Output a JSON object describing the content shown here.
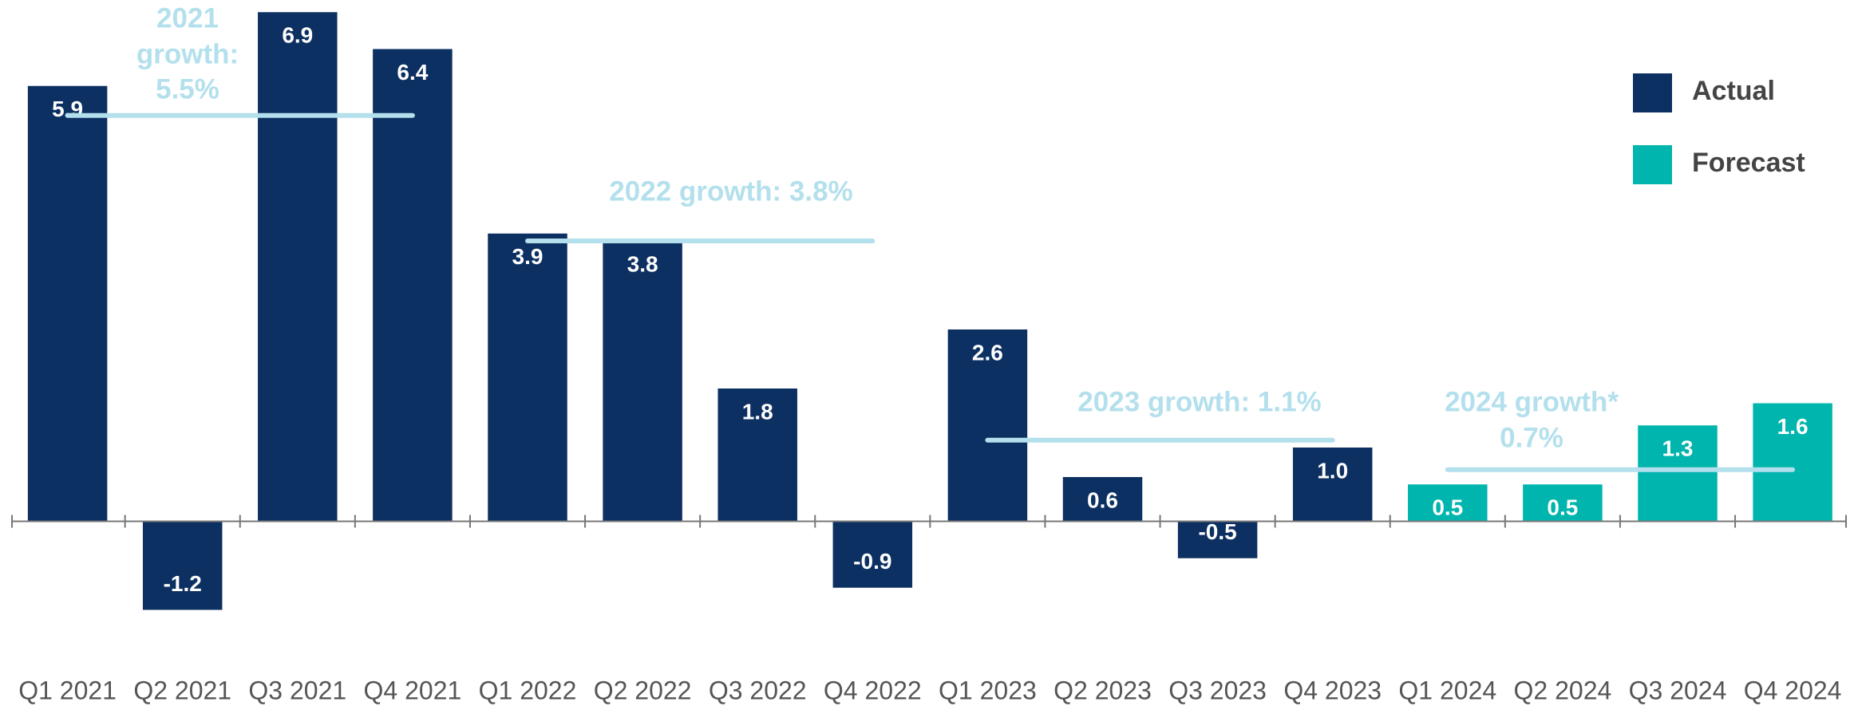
{
  "chart_data": {
    "type": "bar",
    "categories": [
      "Q1 2021",
      "Q2 2021",
      "Q3 2021",
      "Q4 2021",
      "Q1 2022",
      "Q2 2022",
      "Q3 2022",
      "Q4 2022",
      "Q1 2023",
      "Q2 2023",
      "Q3 2023",
      "Q4 2023",
      "Q1 2024",
      "Q2 2024",
      "Q3 2024",
      "Q4 2024"
    ],
    "series": [
      {
        "name": "Actual",
        "color": "#0d3062",
        "values": [
          5.9,
          -1.2,
          6.9,
          6.4,
          3.9,
          3.8,
          1.8,
          -0.9,
          2.6,
          0.6,
          -0.5,
          1.0,
          null,
          null,
          null,
          null
        ],
        "value_labels": [
          "5.9",
          "-1.2",
          "6.9",
          "6.4",
          "3.9",
          "3.8",
          "1.8",
          "-0.9",
          "2.6",
          "0.6",
          "-0.5",
          "1.0",
          null,
          null,
          null,
          null
        ]
      },
      {
        "name": "Forecast",
        "color": "#00b5ad",
        "values": [
          null,
          null,
          null,
          null,
          null,
          null,
          null,
          null,
          null,
          null,
          null,
          null,
          0.5,
          0.5,
          1.3,
          1.6
        ],
        "value_labels": [
          null,
          null,
          null,
          null,
          null,
          null,
          null,
          null,
          null,
          null,
          null,
          null,
          "0.5",
          "0.5",
          "1.3",
          "1.6"
        ]
      }
    ],
    "ylim": [
      -2.5,
      7
    ],
    "legend": "top-right",
    "annotations": [
      {
        "text": [
          "2021",
          "growth:",
          "5.5%"
        ],
        "value": 5.5,
        "from": "Q1 2021",
        "to": "Q4 2021"
      },
      {
        "text": [
          "2022 growth: 3.8%"
        ],
        "value": 3.8,
        "from": "Q1 2022",
        "to": "Q4 2022"
      },
      {
        "text": [
          "2023 growth: 1.1%"
        ],
        "value": 1.1,
        "from": "Q1 2023",
        "to": "Q4 2023"
      },
      {
        "text": [
          "2024 growth*",
          "0.7%"
        ],
        "value": 0.7,
        "from": "Q1 2024",
        "to": "Q4 2024"
      }
    ],
    "annotation_color": "#b3e0ec"
  }
}
